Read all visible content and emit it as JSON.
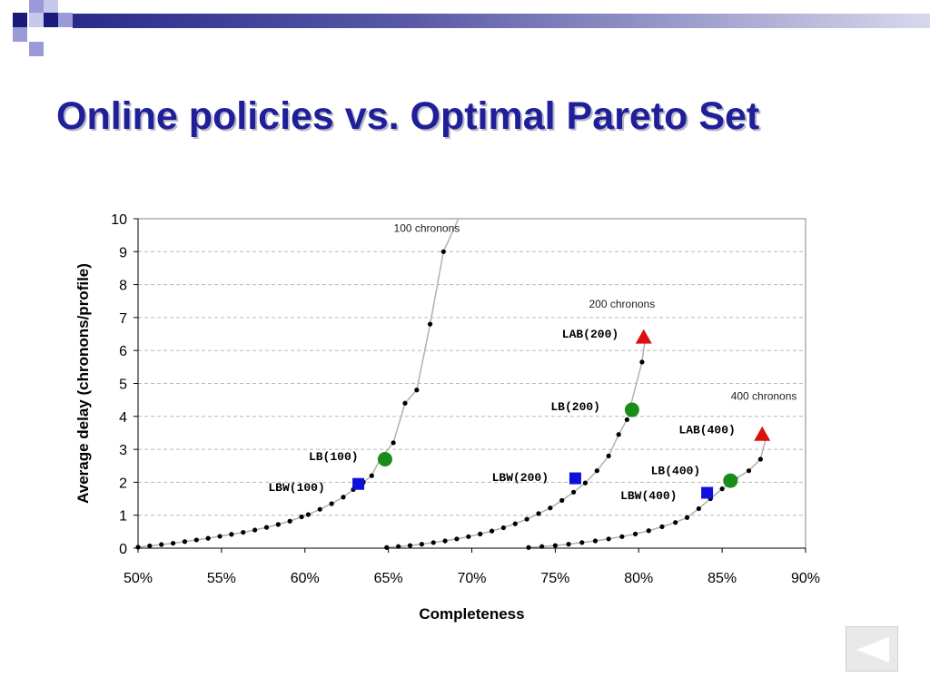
{
  "slide": {
    "title": "Online policies vs. Optimal Pareto Set"
  },
  "colors": {
    "title": "#1f1f9a",
    "curve": "#b0b0b0",
    "point": "#000000",
    "lb_marker": "#1a8c1a",
    "lbw_marker": "#1010dd",
    "lab_marker": "#dd1010"
  },
  "nav": {
    "back_icon": "back-arrow-icon"
  },
  "chart_data": {
    "type": "scatter",
    "xlabel": "Completeness",
    "ylabel": "Average delay (chronons/profile)",
    "xlim": [
      50,
      90
    ],
    "ylim": [
      0,
      10
    ],
    "x_ticks": [
      50,
      55,
      60,
      65,
      70,
      75,
      80,
      85,
      90
    ],
    "x_tick_labels": [
      "50%",
      "55%",
      "60%",
      "65%",
      "70%",
      "75%",
      "80%",
      "85%",
      "90%"
    ],
    "y_ticks": [
      0,
      1,
      2,
      3,
      4,
      5,
      6,
      7,
      8,
      9,
      10
    ],
    "y_tick_labels": [
      "0",
      "1",
      "2",
      "3",
      "4",
      "5",
      "6",
      "7",
      "8",
      "9",
      "10"
    ],
    "grid": "horizontal-dashed",
    "series": [
      {
        "name": "100 chronons",
        "label_at": [
          67.3,
          9.6
        ],
        "points": [
          [
            50.0,
            0.03
          ],
          [
            50.7,
            0.07
          ],
          [
            51.4,
            0.11
          ],
          [
            52.1,
            0.15
          ],
          [
            52.8,
            0.2
          ],
          [
            53.5,
            0.25
          ],
          [
            54.2,
            0.3
          ],
          [
            54.9,
            0.36
          ],
          [
            55.6,
            0.42
          ],
          [
            56.3,
            0.48
          ],
          [
            57.0,
            0.55
          ],
          [
            57.7,
            0.63
          ],
          [
            58.4,
            0.72
          ],
          [
            59.1,
            0.82
          ],
          [
            59.8,
            0.95
          ],
          [
            60.2,
            1.02
          ],
          [
            60.9,
            1.18
          ],
          [
            61.6,
            1.35
          ],
          [
            62.3,
            1.55
          ],
          [
            62.9,
            1.78
          ],
          [
            63.5,
            2.0
          ],
          [
            64.0,
            2.2
          ],
          [
            64.5,
            2.7
          ],
          [
            65.3,
            3.2
          ],
          [
            66.0,
            4.4
          ],
          [
            66.7,
            4.8
          ],
          [
            67.5,
            6.8
          ],
          [
            68.3,
            9.0
          ]
        ],
        "curve_end": [
          69.2,
          10
        ]
      },
      {
        "name": "200 chronons",
        "label_at": [
          79.0,
          7.3
        ],
        "points": [
          [
            64.9,
            0.02
          ],
          [
            65.6,
            0.05
          ],
          [
            66.3,
            0.08
          ],
          [
            67.0,
            0.12
          ],
          [
            67.7,
            0.17
          ],
          [
            68.4,
            0.22
          ],
          [
            69.1,
            0.28
          ],
          [
            69.8,
            0.35
          ],
          [
            70.5,
            0.43
          ],
          [
            71.2,
            0.52
          ],
          [
            71.9,
            0.62
          ],
          [
            72.6,
            0.74
          ],
          [
            73.3,
            0.88
          ],
          [
            74.0,
            1.05
          ],
          [
            74.7,
            1.22
          ],
          [
            75.4,
            1.45
          ],
          [
            76.1,
            1.7
          ],
          [
            76.8,
            1.98
          ],
          [
            77.5,
            2.35
          ],
          [
            78.2,
            2.8
          ],
          [
            78.8,
            3.45
          ],
          [
            79.3,
            3.9
          ],
          [
            80.2,
            5.65
          ]
        ],
        "curve_end": [
          80.4,
          6.4
        ]
      },
      {
        "name": "400 chronons",
        "label_at": [
          87.5,
          4.5
        ],
        "points": [
          [
            73.4,
            0.02
          ],
          [
            74.2,
            0.05
          ],
          [
            75.0,
            0.08
          ],
          [
            75.8,
            0.12
          ],
          [
            76.6,
            0.17
          ],
          [
            77.4,
            0.22
          ],
          [
            78.2,
            0.28
          ],
          [
            79.0,
            0.35
          ],
          [
            79.8,
            0.43
          ],
          [
            80.6,
            0.53
          ],
          [
            81.4,
            0.65
          ],
          [
            82.2,
            0.78
          ],
          [
            82.9,
            0.93
          ],
          [
            83.6,
            1.2
          ],
          [
            84.3,
            1.5
          ],
          [
            85.0,
            1.8
          ],
          [
            85.8,
            2.1
          ],
          [
            86.6,
            2.35
          ],
          [
            87.3,
            2.7
          ]
        ],
        "curve_end": [
          87.6,
          3.3
        ]
      }
    ],
    "markers": [
      {
        "label": "LB(100)",
        "shape": "circle",
        "x": 64.8,
        "y": 2.7,
        "label_at": [
          63.2,
          2.78
        ],
        "anchor": "end"
      },
      {
        "label": "LBW(100)",
        "shape": "square",
        "x": 63.2,
        "y": 1.95,
        "label_at": [
          61.2,
          1.85
        ],
        "anchor": "end"
      },
      {
        "label": "LB(200)",
        "shape": "circle",
        "x": 79.6,
        "y": 4.2,
        "label_at": [
          77.7,
          4.3
        ],
        "anchor": "end"
      },
      {
        "label": "LBW(200)",
        "shape": "square",
        "x": 76.2,
        "y": 2.12,
        "label_at": [
          74.6,
          2.15
        ],
        "anchor": "end"
      },
      {
        "label": "LAB(200)",
        "shape": "triangle",
        "x": 80.3,
        "y": 6.4,
        "label_at": [
          78.8,
          6.5
        ],
        "anchor": "end"
      },
      {
        "label": "LB(400)",
        "shape": "circle",
        "x": 85.5,
        "y": 2.05,
        "label_at": [
          83.7,
          2.35
        ],
        "anchor": "end"
      },
      {
        "label": "LBW(400)",
        "shape": "square",
        "x": 84.1,
        "y": 1.68,
        "label_at": [
          82.3,
          1.6
        ],
        "anchor": "end"
      },
      {
        "label": "LAB(400)",
        "shape": "triangle",
        "x": 87.4,
        "y": 3.45,
        "label_at": [
          85.8,
          3.6
        ],
        "anchor": "end"
      }
    ]
  }
}
